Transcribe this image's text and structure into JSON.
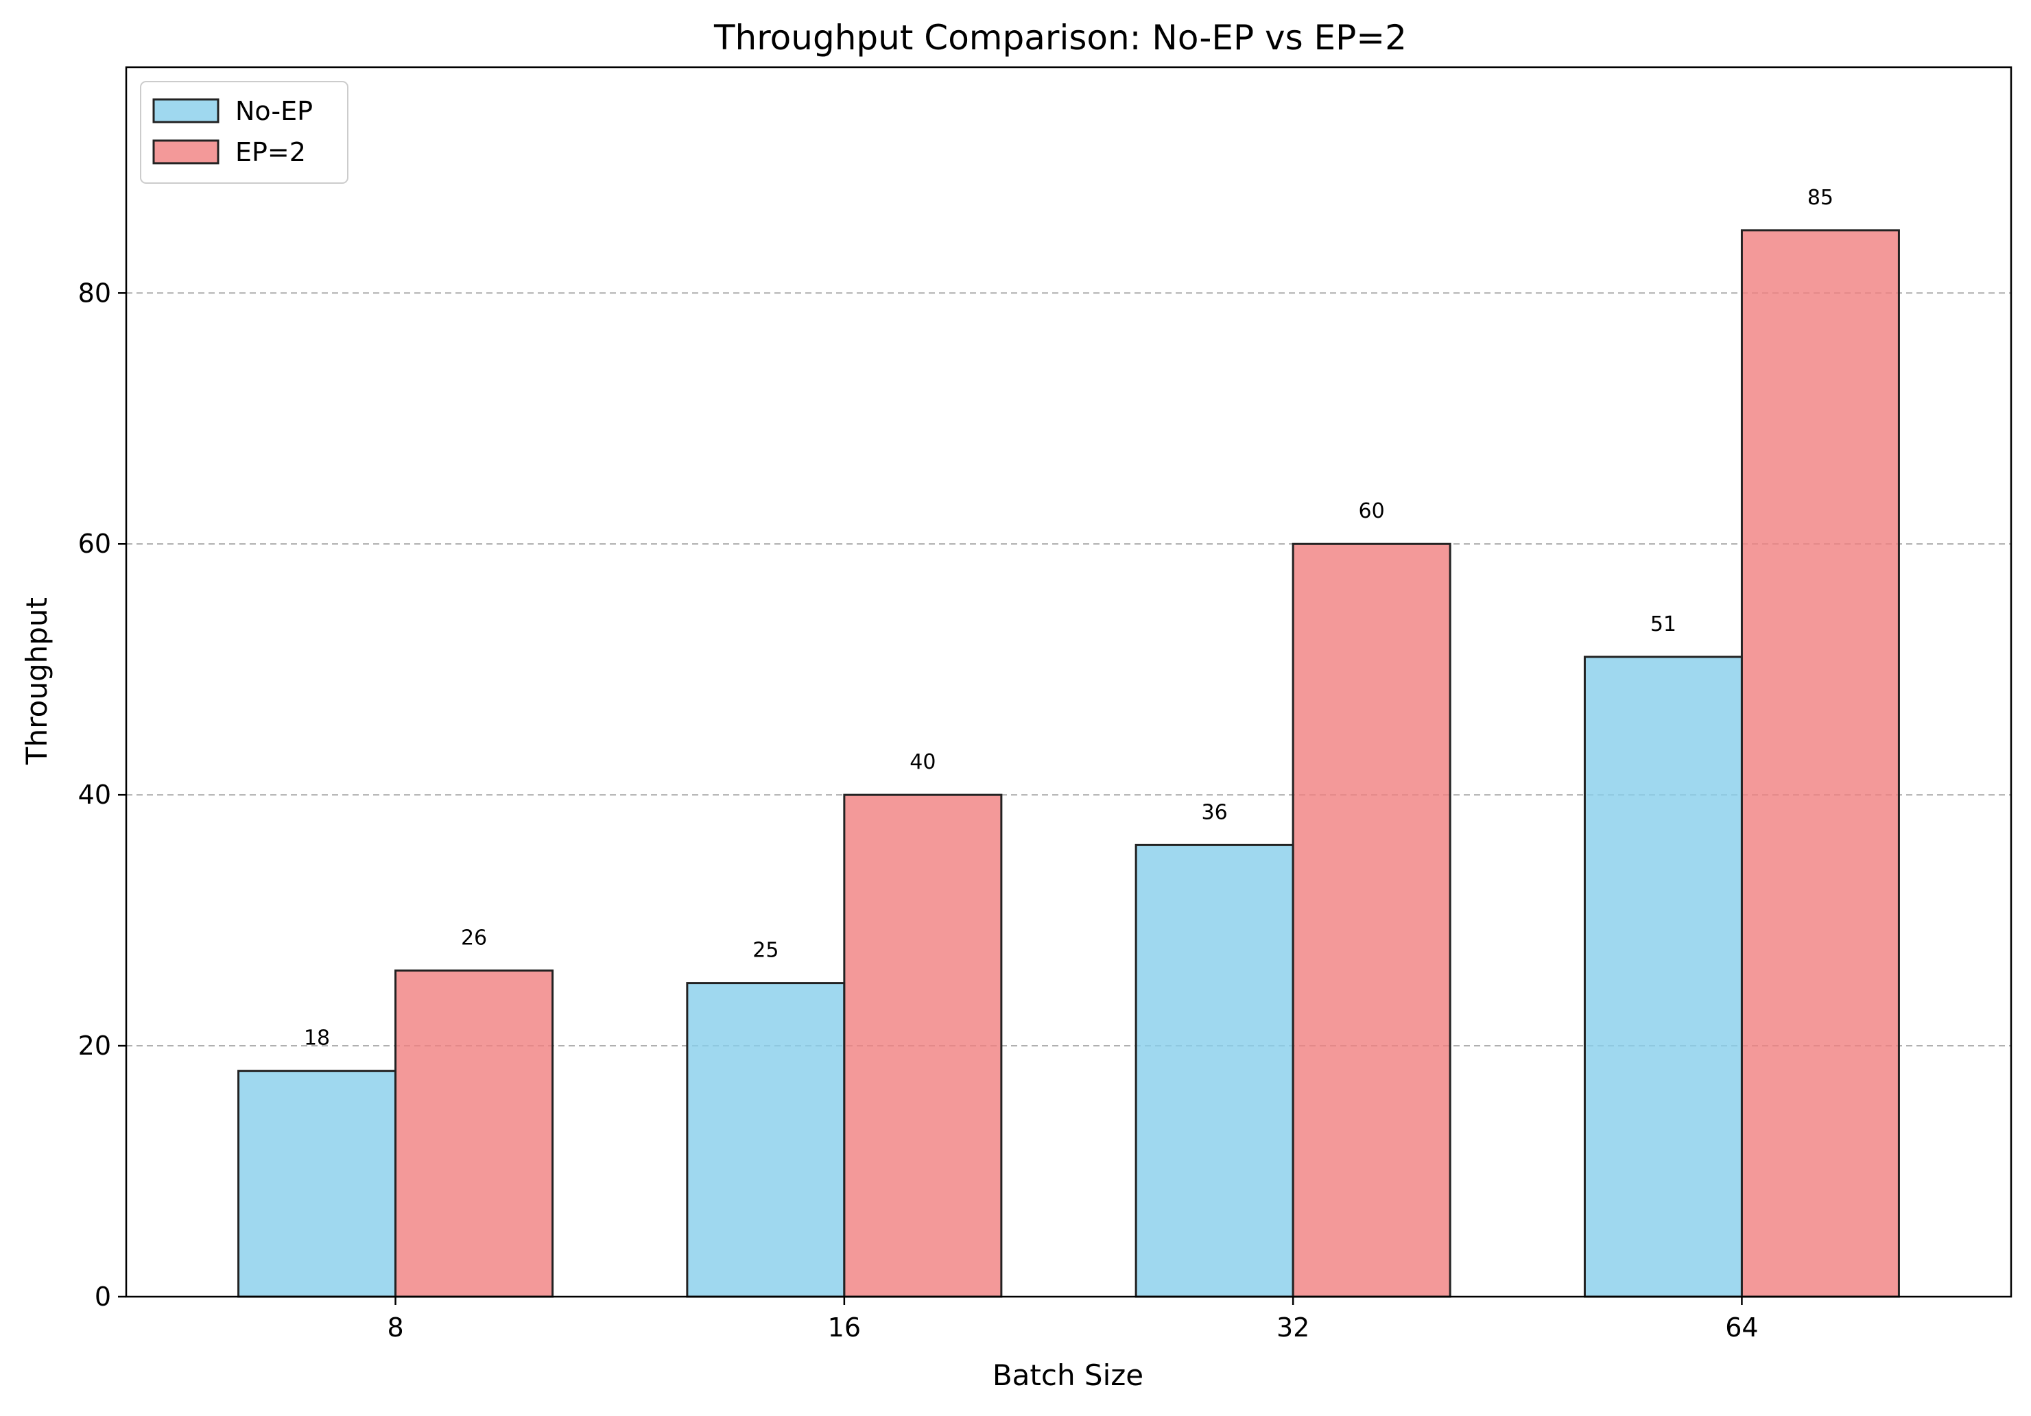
{
  "chart_data": {
    "type": "bar",
    "title": "Throughput Comparison: No-EP vs EP=2",
    "xlabel": "Batch Size",
    "ylabel": "Throughput",
    "categories": [
      "8",
      "16",
      "32",
      "64"
    ],
    "series": [
      {
        "name": "No-EP",
        "values": [
          18,
          25,
          36,
          51
        ],
        "color": "#87CEEB"
      },
      {
        "name": "EP=2",
        "values": [
          26,
          40,
          60,
          85
        ],
        "color": "#F08080"
      }
    ],
    "ylim": [
      0,
      98
    ],
    "yticks": [
      0,
      20,
      40,
      60,
      80
    ],
    "grid": {
      "axis": "y",
      "style": "dashed",
      "color": "#b0b0b0"
    },
    "legend": {
      "position": "top-left"
    },
    "bar_edge_color": "#222222",
    "data_labels": true
  }
}
